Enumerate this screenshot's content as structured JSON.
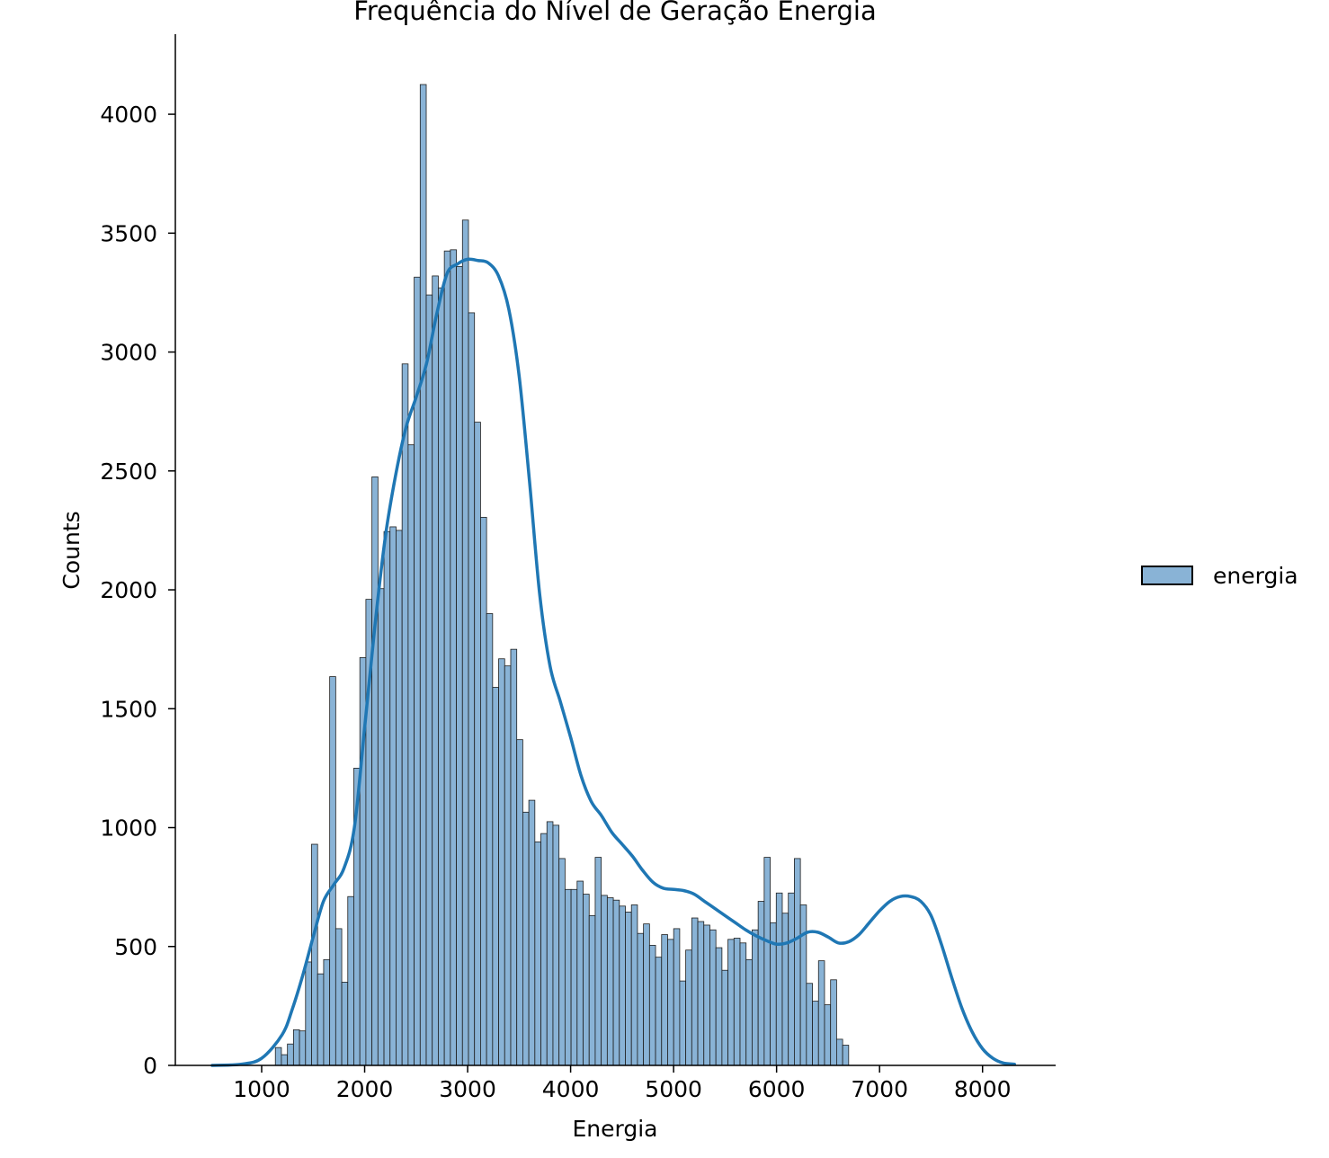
{
  "chart_data": {
    "type": "bar",
    "title": "Frequência do Nível de Geração Energia",
    "xlabel": "Energia",
    "ylabel": "Counts",
    "xlim": [
      120,
      8700
    ],
    "ylim": [
      0,
      4340
    ],
    "x_ticks": [
      1000,
      2000,
      3000,
      4000,
      5000,
      6000,
      7000,
      8000
    ],
    "y_ticks": [
      0,
      500,
      1000,
      1500,
      2000,
      2500,
      3000,
      3500,
      4000
    ],
    "x_tick_labels": [
      "1000",
      "2000",
      "3000",
      "4000",
      "5000",
      "6000",
      "7000",
      "8000"
    ],
    "y_tick_labels": [
      "0",
      "500",
      "1000",
      "1500",
      "2000",
      "2500",
      "3000",
      "3500",
      "4000"
    ],
    "legend": {
      "position": "right",
      "entries": [
        "energia"
      ]
    },
    "grid": false,
    "colors": {
      "bar_fill": "#89b3d6",
      "bar_edge": "#1f1f1f",
      "kde_line": "#1f77b4"
    },
    "bins": {
      "start": 1133,
      "width": 58.6
    },
    "series": [
      {
        "name": "energia",
        "values": [
          75,
          45,
          90,
          150,
          145,
          435,
          930,
          385,
          445,
          1635,
          575,
          350,
          710,
          1250,
          1715,
          1960,
          2475,
          2005,
          2245,
          2265,
          2250,
          2950,
          2610,
          3315,
          4125,
          3240,
          3320,
          3270,
          3425,
          3430,
          3360,
          3555,
          3165,
          2705,
          2305,
          1900,
          1590,
          1710,
          1680,
          1750,
          1370,
          1065,
          1115,
          940,
          975,
          1025,
          1010,
          870,
          740,
          740,
          775,
          720,
          630,
          875,
          715,
          705,
          695,
          670,
          645,
          675,
          555,
          595,
          505,
          455,
          550,
          530,
          575,
          355,
          485,
          620,
          605,
          590,
          570,
          495,
          400,
          530,
          535,
          515,
          445,
          570,
          690,
          875,
          600,
          725,
          640,
          725,
          870,
          675,
          345,
          270,
          440,
          255,
          360,
          110,
          85
        ]
      },
      {
        "name": "energia-kde",
        "x": [
          520,
          800,
          1000,
          1200,
          1300,
          1400,
          1500,
          1600,
          1700,
          1800,
          1900,
          2000,
          2100,
          2200,
          2300,
          2400,
          2500,
          2600,
          2700,
          2800,
          2900,
          3000,
          3100,
          3200,
          3300,
          3400,
          3500,
          3600,
          3700,
          3800,
          3900,
          4000,
          4100,
          4200,
          4300,
          4400,
          4500,
          4600,
          4700,
          4800,
          4900,
          5000,
          5100,
          5200,
          5300,
          5400,
          5500,
          5600,
          5700,
          5800,
          5900,
          6000,
          6100,
          6200,
          6300,
          6400,
          6500,
          6600,
          6700,
          6800,
          6900,
          7000,
          7100,
          7200,
          7300,
          7400,
          7500,
          7600,
          7700,
          7800,
          7900,
          8000,
          8100,
          8200,
          8310
        ],
        "values": [
          0,
          5,
          30,
          130,
          240,
          380,
          540,
          690,
          760,
          830,
          1000,
          1420,
          1850,
          2220,
          2480,
          2680,
          2810,
          2950,
          3160,
          3330,
          3370,
          3390,
          3385,
          3375,
          3320,
          3180,
          2900,
          2460,
          1980,
          1680,
          1530,
          1380,
          1220,
          1110,
          1050,
          980,
          930,
          880,
          820,
          770,
          745,
          740,
          735,
          720,
          690,
          660,
          630,
          600,
          570,
          545,
          525,
          510,
          515,
          535,
          560,
          560,
          540,
          515,
          520,
          550,
          600,
          650,
          690,
          710,
          710,
          690,
          630,
          510,
          370,
          240,
          140,
          70,
          30,
          10,
          5
        ]
      }
    ]
  }
}
